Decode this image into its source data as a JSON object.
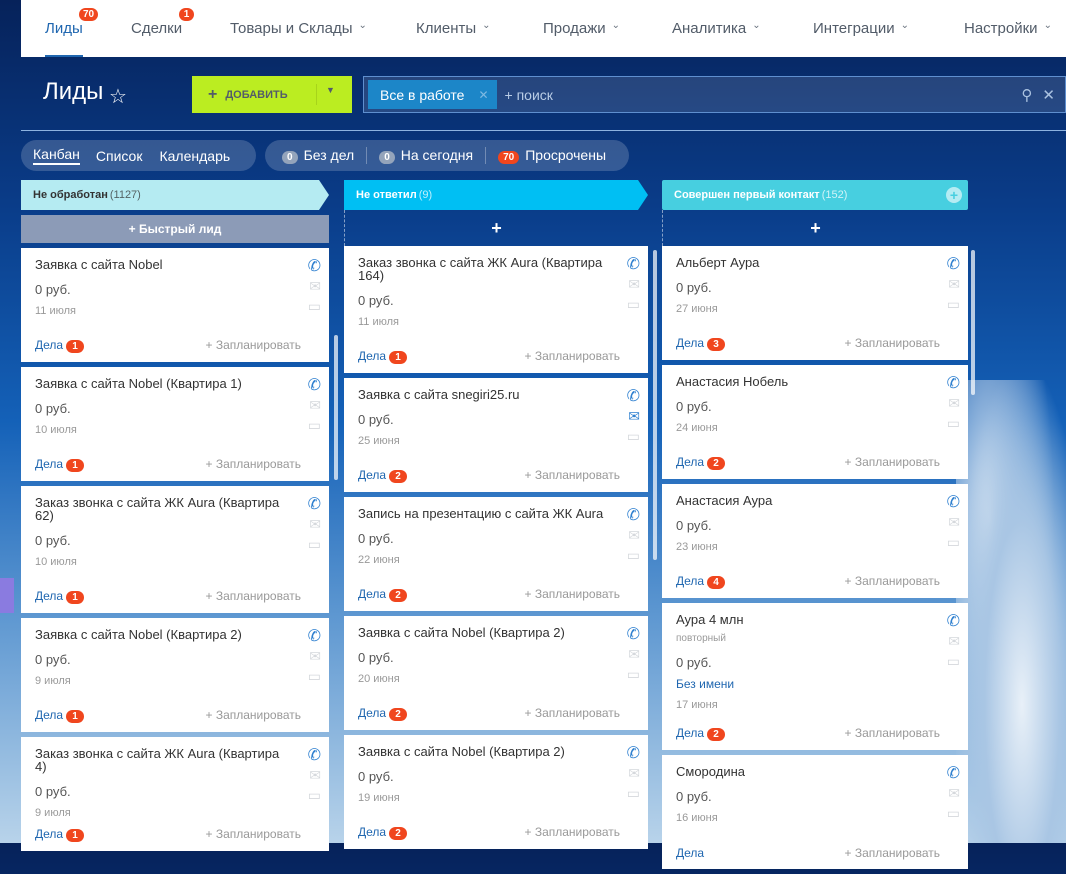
{
  "nav": [
    {
      "label": "Лиды",
      "badge": "70",
      "active": true
    },
    {
      "label": "Сделки",
      "badge": "1"
    },
    {
      "label": "Товары и Склады",
      "chevron": true
    },
    {
      "label": "Клиенты",
      "chevron": true
    },
    {
      "label": "Продажи",
      "chevron": true
    },
    {
      "label": "Аналитика",
      "chevron": true
    },
    {
      "label": "Интеграции",
      "chevron": true
    },
    {
      "label": "Настройки",
      "chevron": true
    }
  ],
  "page": {
    "title": "Лиды",
    "add_label": "ДОБАВИТЬ"
  },
  "search": {
    "chip": "Все в работе",
    "placeholder": "+ поиск"
  },
  "views": [
    "Канбан",
    "Список",
    "Календарь"
  ],
  "counters": [
    {
      "count": "0",
      "label": "Без дел"
    },
    {
      "count": "0",
      "label": "На сегодня"
    },
    {
      "count": "70",
      "label": "Просрочены",
      "red": true
    }
  ],
  "colors": {
    "col1": "#b5ebf2",
    "col2": "#00bff3",
    "col3": "#47cfe0",
    "accent": "#bbed21",
    "badge": "#f0461e"
  },
  "columns": [
    {
      "name": "Не обработан",
      "count": "(1127)",
      "quick": "+ Быстрый лид",
      "cards": [
        {
          "title": "Заявка с сайта Nobel",
          "price": "0 руб.",
          "date": "11 июля",
          "dela": "1"
        },
        {
          "title": "Заявка с сайта Nobel (Квартира 1)",
          "price": "0 руб.",
          "date": "10 июля",
          "dela": "1"
        },
        {
          "title": "Заказ звонка с сайта ЖК Aura (Квартира 62)",
          "price": "0 руб.",
          "date": "10 июля",
          "dela": "1",
          "two": true
        },
        {
          "title": "Заявка с сайта Nobel (Квартира 2)",
          "price": "0 руб.",
          "date": "9 июля",
          "dela": "1"
        },
        {
          "title": "Заказ звонка с сайта ЖК Aura (Квартира 4)",
          "price": "0 руб.",
          "date": "9 июля",
          "dela": "1"
        }
      ]
    },
    {
      "name": "Не ответил",
      "count": "(9)",
      "cards": [
        {
          "title": "Заказ звонка с сайта ЖК Aura (Квартира 164)",
          "price": "0 руб.",
          "date": "11 июля",
          "dela": "1",
          "two": true
        },
        {
          "title": "Заявка с сайта snegiri25.ru",
          "price": "0 руб.",
          "date": "25 июня",
          "dela": "2",
          "mail_active": true
        },
        {
          "title": "Запись на презентацию с сайта ЖК Aura",
          "price": "0 руб.",
          "date": "22 июня",
          "dela": "2"
        },
        {
          "title": "Заявка с сайта Nobel (Квартира 2)",
          "price": "0 руб.",
          "date": "20 июня",
          "dela": "2"
        },
        {
          "title": "Заявка с сайта Nobel (Квартира 2)",
          "price": "0 руб.",
          "date": "19 июня",
          "dela": "2"
        }
      ]
    },
    {
      "name": "Совершен первый контакт",
      "count": "(152)",
      "cards": [
        {
          "title": "Альберт Аура",
          "price": "0 руб.",
          "date": "27 июня",
          "dela": "3"
        },
        {
          "title": "Анастасия Нобель",
          "price": "0 руб.",
          "date": "24 июня",
          "dela": "2"
        },
        {
          "title": "Анастасия Аура",
          "price": "0 руб.",
          "date": "23 июня",
          "dela": "4"
        },
        {
          "title": "Аура 4 млн",
          "subtitle": "повторный",
          "price": "0 руб.",
          "contact": "Без имени",
          "date": "17 июня",
          "dela": "2"
        },
        {
          "title": "Смородина",
          "price": "0 руб.",
          "date": "16 июня",
          "dela": ""
        }
      ]
    }
  ],
  "card_labels": {
    "dela": "Дела",
    "plan": "+ Запланировать"
  }
}
